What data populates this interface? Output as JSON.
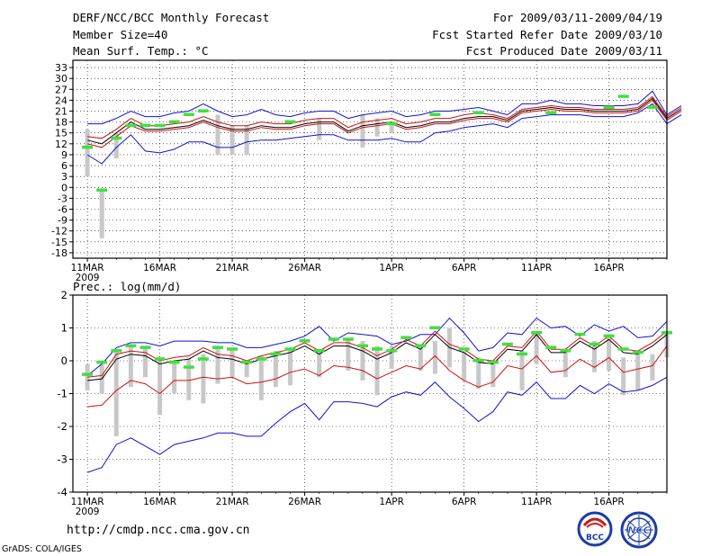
{
  "header": {
    "title": "DERF/NCC/BCC Monthly Forecast",
    "member_size": "Member Size=40",
    "variable": "Mean Surf. Temp.: °C",
    "period": "For 2009/03/11-2009/04/19",
    "start_date": "Fcst Started Refer Date 2009/03/10",
    "produced_date": "Fcst Produced Date 2009/03/11"
  },
  "footer": {
    "url": "http://cmdp.ncc.cma.gov.cn",
    "grads": "GrADS: COLA/IGES",
    "logo_bcc": "BCC",
    "logo_ncc": "NCC"
  },
  "colors": {
    "blue": "#1010d0",
    "red": "#d01010",
    "black": "#000000",
    "green": "#40e040",
    "grey": "#c8c8c8"
  },
  "chart_data": [
    {
      "type": "line",
      "title": "Mean Surf. Temp.: °C",
      "ylim": [
        -19.5,
        35
      ],
      "yticks": [
        -18,
        -15,
        -12,
        -9,
        -6,
        -3,
        0,
        3,
        6,
        9,
        12,
        15,
        18,
        21,
        24,
        27,
        30,
        33
      ],
      "xlim": [
        0,
        41
      ],
      "xticks": [
        {
          "pos": 1,
          "label": "11MAR"
        },
        {
          "pos": 6,
          "label": "16MAR"
        },
        {
          "pos": 11,
          "label": "21MAR"
        },
        {
          "pos": 16,
          "label": "26MAR"
        },
        {
          "pos": 22,
          "label": "1APR"
        },
        {
          "pos": 27,
          "label": "6APR"
        },
        {
          "pos": 32,
          "label": "11APR"
        },
        {
          "pos": 37,
          "label": "16APR"
        }
      ],
      "year_label": "2009",
      "series": [
        {
          "name": "max",
          "color": "blue",
          "values": [
            17.5,
            17.5,
            19,
            21,
            19.5,
            19.5,
            20.5,
            21,
            23,
            21,
            19.5,
            20,
            21.5,
            20,
            19.5,
            20.5,
            21,
            21,
            19,
            20,
            20.5,
            21,
            19.5,
            20,
            21,
            21,
            21.5,
            22,
            21,
            20,
            23,
            23,
            24,
            23,
            23,
            22.5,
            22.5,
            22.5,
            23,
            26.5,
            20,
            22.5
          ]
        },
        {
          "name": "upper",
          "color": "red",
          "values": [
            14,
            13.5,
            16,
            19,
            17,
            17,
            17.5,
            18,
            19.5,
            18,
            17,
            17,
            18,
            17.5,
            17.5,
            18.5,
            19,
            19,
            16.5,
            18,
            18.5,
            19,
            17.5,
            18,
            19,
            19,
            20,
            20.5,
            20,
            19,
            21.5,
            22,
            22.5,
            22,
            22,
            21.5,
            21.5,
            21.5,
            22,
            25,
            19.5,
            22
          ]
        },
        {
          "name": "mean",
          "color": "black",
          "values": [
            13,
            12,
            15,
            18,
            16,
            16,
            16.5,
            17,
            18.5,
            17,
            16,
            16,
            17,
            16.5,
            16.5,
            17.5,
            18,
            18,
            15.5,
            17,
            17.5,
            18,
            16.5,
            17,
            18,
            18,
            19,
            19.5,
            19.5,
            18.5,
            21,
            21.5,
            22,
            21.5,
            21.5,
            21,
            21,
            21,
            21.5,
            24.5,
            19,
            21.5
          ]
        },
        {
          "name": "lower",
          "color": "red",
          "values": [
            12,
            11,
            14,
            17,
            15.5,
            15.5,
            16,
            16.5,
            18,
            16.5,
            15.5,
            15.5,
            16.5,
            16,
            16,
            17,
            17.5,
            17.5,
            15,
            16.5,
            17,
            17.5,
            16,
            16.5,
            17.5,
            17.5,
            18.5,
            19,
            19,
            18,
            20.5,
            21,
            21.5,
            21,
            21,
            20.5,
            20.5,
            20.5,
            21,
            24,
            18.5,
            21
          ]
        },
        {
          "name": "min",
          "color": "blue",
          "values": [
            9,
            6.5,
            11,
            14.5,
            10,
            9.5,
            10.5,
            12.5,
            12.5,
            11,
            11,
            12.5,
            13,
            13,
            13.5,
            14,
            14.5,
            14.5,
            13,
            13,
            13,
            13.5,
            12.5,
            12.5,
            15,
            15.5,
            16.5,
            17,
            17.5,
            16.5,
            19,
            19.5,
            20,
            20,
            20,
            19.5,
            19.5,
            19.5,
            20.5,
            23,
            17.5,
            20
          ]
        }
      ],
      "bars": [
        {
          "x": 1,
          "low": 3,
          "high": 16,
          "obs": 11
        },
        {
          "x": 2,
          "low": -14,
          "high": -1,
          "obs": -1
        },
        {
          "x": 3,
          "low": 8,
          "high": 15,
          "obs": 13
        },
        {
          "x": 10,
          "low": 9,
          "high": 20,
          "obs": null
        },
        {
          "x": 11,
          "low": 9,
          "high": 17,
          "obs": null
        },
        {
          "x": 12,
          "low": 9,
          "high": 17,
          "obs": null
        },
        {
          "x": 17,
          "low": 13,
          "high": 19,
          "obs": null
        },
        {
          "x": 20,
          "low": 11,
          "high": 20,
          "obs": null
        },
        {
          "x": 21,
          "low": 14,
          "high": 19,
          "obs": null
        },
        {
          "x": 22,
          "low": 15,
          "high": 18,
          "obs": null
        }
      ],
      "green_marks": [
        {
          "x": 1,
          "y": 11
        },
        {
          "x": 2,
          "y": -0.8
        },
        {
          "x": 3,
          "y": 13.5
        },
        {
          "x": 4,
          "y": 17
        },
        {
          "x": 5,
          "y": 17
        },
        {
          "x": 6,
          "y": 17
        },
        {
          "x": 7,
          "y": 18
        },
        {
          "x": 8,
          "y": 20
        },
        {
          "x": 9,
          "y": 21
        },
        {
          "x": 15,
          "y": 18
        },
        {
          "x": 22,
          "y": 17.5
        },
        {
          "x": 25,
          "y": 20
        },
        {
          "x": 28,
          "y": 20.5
        },
        {
          "x": 33,
          "y": 20.5
        },
        {
          "x": 37,
          "y": 22
        },
        {
          "x": 38,
          "y": 25
        },
        {
          "x": 40,
          "y": 22
        }
      ]
    },
    {
      "type": "line",
      "title": "Prec.: log(mm/d)",
      "ylim": [
        -4,
        2
      ],
      "yticks": [
        -4,
        -3,
        -2,
        -1,
        0,
        1,
        2
      ],
      "xlim": [
        0,
        41
      ],
      "xticks": [
        {
          "pos": 1,
          "label": "11MAR"
        },
        {
          "pos": 6,
          "label": "16MAR"
        },
        {
          "pos": 11,
          "label": "21MAR"
        },
        {
          "pos": 16,
          "label": "26MAR"
        },
        {
          "pos": 22,
          "label": "1APR"
        },
        {
          "pos": 27,
          "label": "6APR"
        },
        {
          "pos": 32,
          "label": "11APR"
        },
        {
          "pos": 37,
          "label": "16APR"
        }
      ],
      "year_label": "2009",
      "series": [
        {
          "name": "max",
          "color": "blue",
          "values": [
            -0.45,
            -0.1,
            0.4,
            0.55,
            0.55,
            0.45,
            0.6,
            0.6,
            0.6,
            0.55,
            0.55,
            0.4,
            0.4,
            0.5,
            0.6,
            0.75,
            1.05,
            0.6,
            0.85,
            0.8,
            0.75,
            0.5,
            0.6,
            0.8,
            0.8,
            1.3,
            0.85,
            0.3,
            0.4,
            0.85,
            0.8,
            1.3,
            1.0,
            1.05,
            0.75,
            1.1,
            0.9,
            1.05,
            0.7,
            0.75,
            1.2
          ]
        },
        {
          "name": "upper",
          "color": "red",
          "values": [
            -0.5,
            -0.45,
            0.2,
            0.3,
            0.25,
            0.0,
            0.1,
            0.15,
            0.4,
            0.2,
            0.15,
            0.0,
            0.15,
            0.25,
            0.35,
            0.55,
            0.3,
            0.55,
            0.55,
            0.4,
            0.15,
            0.35,
            0.65,
            0.45,
            0.9,
            0.5,
            0.35,
            0.05,
            0.0,
            0.45,
            0.4,
            0.9,
            0.35,
            0.35,
            0.7,
            0.45,
            0.75,
            0.35,
            0.3,
            0.55,
            0.9
          ]
        },
        {
          "name": "mean",
          "color": "black",
          "values": [
            -0.6,
            -0.55,
            0.05,
            0.2,
            0.15,
            -0.1,
            0.0,
            0.05,
            0.3,
            0.1,
            0.05,
            -0.1,
            0.05,
            0.15,
            0.25,
            0.45,
            0.2,
            0.45,
            0.45,
            0.3,
            0.05,
            0.25,
            0.55,
            0.35,
            0.8,
            0.4,
            0.25,
            -0.05,
            -0.1,
            0.35,
            0.3,
            0.8,
            0.25,
            0.25,
            0.6,
            0.35,
            0.65,
            0.25,
            0.2,
            0.45,
            0.8
          ]
        },
        {
          "name": "lower",
          "color": "red",
          "values": [
            -1.4,
            -1.35,
            -0.9,
            -0.6,
            -0.7,
            -1.0,
            -0.6,
            -0.6,
            -0.5,
            -0.55,
            -0.5,
            -0.7,
            -0.65,
            -0.55,
            -0.35,
            -0.25,
            -0.45,
            -0.15,
            -0.2,
            -0.3,
            -0.55,
            -0.35,
            -0.15,
            -0.25,
            0.15,
            -0.3,
            -0.6,
            -0.8,
            -0.65,
            -0.15,
            -0.25,
            0.15,
            -0.35,
            -0.3,
            0.05,
            -0.2,
            0.1,
            -0.35,
            -0.25,
            -0.15,
            0.45
          ]
        },
        {
          "name": "min",
          "color": "blue",
          "values": [
            -3.4,
            -3.25,
            -2.55,
            -2.35,
            -2.6,
            -2.85,
            -2.55,
            -2.45,
            -2.35,
            -2.2,
            -2.2,
            -2.3,
            -2.3,
            -1.9,
            -1.55,
            -1.3,
            -1.8,
            -1.25,
            -1.25,
            -1.3,
            -1.4,
            -1.1,
            -0.95,
            -1.05,
            -0.65,
            -1.1,
            -1.45,
            -1.85,
            -1.55,
            -0.95,
            -1.05,
            -0.65,
            -1.15,
            -1.15,
            -0.75,
            -1.0,
            -0.7,
            -0.95,
            -0.9,
            -0.75,
            -0.5
          ]
        }
      ],
      "bars": [
        {
          "x": 1,
          "low": -0.9,
          "high": -0.1
        },
        {
          "x": 2,
          "low": -1.0,
          "high": -0.1
        },
        {
          "x": 3,
          "low": -2.3,
          "high": 0.35
        },
        {
          "x": 4,
          "low": -0.8,
          "high": 0.5
        },
        {
          "x": 5,
          "low": -0.5,
          "high": 0.45
        },
        {
          "x": 6,
          "low": -1.65,
          "high": 0.05
        },
        {
          "x": 7,
          "low": -1.0,
          "high": 0.0
        },
        {
          "x": 8,
          "low": -1.2,
          "high": 0.1
        },
        {
          "x": 9,
          "low": -1.3,
          "high": 0.2
        },
        {
          "x": 10,
          "low": -0.7,
          "high": 0.45
        },
        {
          "x": 11,
          "low": -0.5,
          "high": 0.35
        },
        {
          "x": 12,
          "low": -0.5,
          "high": 0.0
        },
        {
          "x": 13,
          "low": -1.2,
          "high": 0.15
        },
        {
          "x": 14,
          "low": -0.8,
          "high": 0.3
        },
        {
          "x": 15,
          "low": -0.75,
          "high": 0.35
        },
        {
          "x": 17,
          "low": -0.5,
          "high": 0.3
        },
        {
          "x": 19,
          "low": -0.3,
          "high": 0.7
        },
        {
          "x": 20,
          "low": -0.6,
          "high": 0.6
        },
        {
          "x": 21,
          "low": -1.05,
          "high": 0.45
        },
        {
          "x": 22,
          "low": -0.25,
          "high": 0.45
        },
        {
          "x": 24,
          "low": -0.3,
          "high": 0.5
        },
        {
          "x": 25,
          "low": -0.4,
          "high": 0.6
        },
        {
          "x": 26,
          "low": -0.2,
          "high": 1.0
        },
        {
          "x": 27,
          "low": -0.6,
          "high": 0.3
        },
        {
          "x": 28,
          "low": -0.85,
          "high": 0.1
        },
        {
          "x": 29,
          "low": -0.8,
          "high": -0.1
        },
        {
          "x": 31,
          "low": -0.9,
          "high": 0.3
        },
        {
          "x": 32,
          "low": -0.1,
          "high": 0.85
        },
        {
          "x": 34,
          "low": -0.5,
          "high": 0.35
        },
        {
          "x": 36,
          "low": -0.35,
          "high": 0.6
        },
        {
          "x": 37,
          "low": -0.3,
          "high": 0.75
        },
        {
          "x": 38,
          "low": -1.05,
          "high": 0.1
        },
        {
          "x": 39,
          "low": -0.9,
          "high": 0.2
        },
        {
          "x": 40,
          "low": -0.6,
          "high": 0.2
        },
        {
          "x": 41,
          "low": 0.1,
          "high": 0.9
        }
      ],
      "green_marks": [
        {
          "x": 1,
          "y": -0.42
        },
        {
          "x": 2,
          "y": -0.05
        },
        {
          "x": 3,
          "y": 0.3
        },
        {
          "x": 4,
          "y": 0.45
        },
        {
          "x": 5,
          "y": 0.4
        },
        {
          "x": 6,
          "y": 0.05
        },
        {
          "x": 7,
          "y": -0.05
        },
        {
          "x": 8,
          "y": -0.2
        },
        {
          "x": 9,
          "y": 0.05
        },
        {
          "x": 10,
          "y": 0.4
        },
        {
          "x": 11,
          "y": 0.35
        },
        {
          "x": 12,
          "y": -0.05
        },
        {
          "x": 13,
          "y": 0.05
        },
        {
          "x": 14,
          "y": 0.2
        },
        {
          "x": 15,
          "y": 0.35
        },
        {
          "x": 16,
          "y": 0.6
        },
        {
          "x": 17,
          "y": 0.3
        },
        {
          "x": 18,
          "y": 0.65
        },
        {
          "x": 19,
          "y": 0.65
        },
        {
          "x": 20,
          "y": 0.45
        },
        {
          "x": 21,
          "y": 0.35
        },
        {
          "x": 22,
          "y": 0.3
        },
        {
          "x": 23,
          "y": 0.7
        },
        {
          "x": 24,
          "y": 0.45
        },
        {
          "x": 25,
          "y": 1.0
        },
        {
          "x": 27,
          "y": 0.35
        },
        {
          "x": 28,
          "y": 0.0
        },
        {
          "x": 29,
          "y": -0.05
        },
        {
          "x": 30,
          "y": 0.5
        },
        {
          "x": 31,
          "y": 0.2
        },
        {
          "x": 32,
          "y": 0.85
        },
        {
          "x": 33,
          "y": 0.4
        },
        {
          "x": 34,
          "y": 0.3
        },
        {
          "x": 35,
          "y": 0.8
        },
        {
          "x": 36,
          "y": 0.5
        },
        {
          "x": 37,
          "y": 0.75
        },
        {
          "x": 38,
          "y": 0.35
        },
        {
          "x": 39,
          "y": 0.25
        },
        {
          "x": 41,
          "y": 0.85
        }
      ]
    }
  ]
}
